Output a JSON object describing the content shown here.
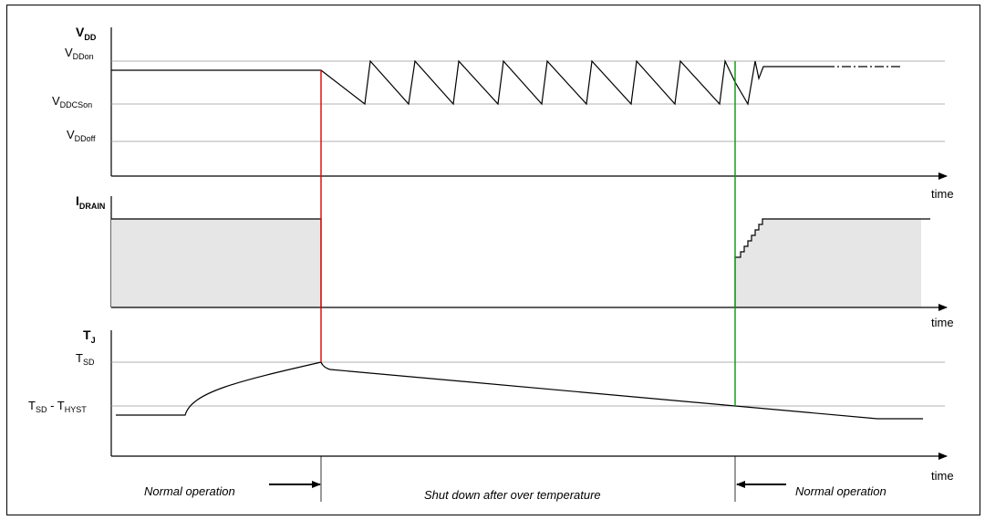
{
  "signals": {
    "vdd": {
      "main": "V",
      "sub": "DD"
    },
    "idrain": {
      "main": "I",
      "sub": "DRAIN"
    },
    "tj": {
      "main": "T",
      "sub": "J"
    }
  },
  "levels": {
    "vddon": {
      "main": "V",
      "sub": "DDon"
    },
    "vddcson": {
      "main": "V",
      "sub": "DDCSon"
    },
    "vddoff": {
      "main": "V",
      "sub": "DDoff"
    },
    "tsd": {
      "main": "T",
      "sub": "SD"
    },
    "tsd_thyst": {
      "main1": "T",
      "sub1": "SD",
      "mid": " - T",
      "sub2": "HYST"
    }
  },
  "axis_label": "time",
  "phases": {
    "normal_before": "Normal operation",
    "shutdown": "Shut down after over temperature",
    "normal_after": "Normal operation"
  },
  "colors": {
    "shutdown_marker": "#e00000",
    "restart_marker": "#00a000",
    "drain_fill": "#e6e6e6",
    "reference_line": "#999999"
  }
}
